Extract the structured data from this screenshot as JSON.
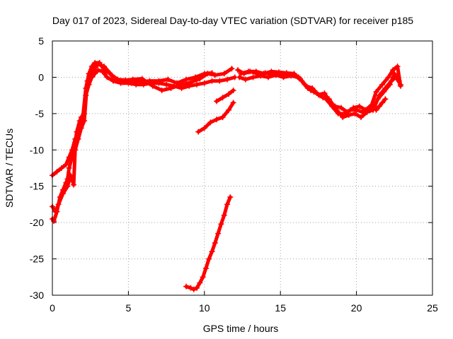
{
  "chart_data": {
    "type": "scatter",
    "title": "Day 017 of 2023, Sidereal Day-to-day VTEC variation (SDTVAR) for receiver p185",
    "xlabel": "GPS time / hours",
    "ylabel": "SDTVAR / TECUs",
    "xlim": [
      0,
      25
    ],
    "ylim": [
      -30,
      5
    ],
    "xticks": [
      0,
      5,
      10,
      15,
      20,
      25
    ],
    "yticks": [
      5,
      0,
      -5,
      -10,
      -15,
      -20,
      -25,
      -30
    ],
    "grid": true,
    "marker": "+",
    "series": [
      {
        "name": "p185",
        "color": "#ff0000",
        "tracks": [
          [
            [
              0.0,
              -19.5
            ],
            [
              0.1,
              -19.8
            ],
            [
              0.3,
              -18.5
            ],
            [
              0.5,
              -16.5
            ],
            [
              0.7,
              -15.5
            ],
            [
              0.9,
              -14.5
            ],
            [
              1.0,
              -14.0
            ],
            [
              1.1,
              -12.5
            ],
            [
              1.3,
              -11.0
            ],
            [
              1.5,
              -9.0
            ],
            [
              1.6,
              -7.5
            ],
            [
              1.8,
              -6.0
            ],
            [
              1.9,
              -5.5
            ],
            [
              2.1,
              -5.0
            ],
            [
              2.2,
              -2.5
            ],
            [
              2.4,
              -1.0
            ],
            [
              2.6,
              0.0
            ],
            [
              2.8,
              0.5
            ],
            [
              3.0,
              1.0
            ],
            [
              3.3,
              0.8
            ],
            [
              3.6,
              0.0
            ],
            [
              4.0,
              -0.5
            ],
            [
              4.5,
              -0.8
            ],
            [
              5.0,
              -0.8
            ],
            [
              5.5,
              -1.0
            ],
            [
              6.0,
              -1.0
            ],
            [
              6.5,
              -0.8
            ],
            [
              7.0,
              -0.8
            ],
            [
              7.5,
              -1.0
            ],
            [
              8.0,
              -1.2
            ],
            [
              8.5,
              -1.5
            ],
            [
              9.0,
              -1.2
            ],
            [
              9.5,
              -1.0
            ],
            [
              10.0,
              -0.8
            ],
            [
              10.5,
              -0.5
            ],
            [
              11.0,
              -0.5
            ],
            [
              11.5,
              -0.3
            ],
            [
              12.0,
              0.0
            ]
          ],
          [
            [
              0.0,
              -13.5
            ],
            [
              0.3,
              -13.0
            ],
            [
              0.6,
              -12.5
            ],
            [
              0.9,
              -12.0
            ],
            [
              1.1,
              -11.0
            ],
            [
              1.3,
              -10.0
            ],
            [
              1.5,
              -8.5
            ],
            [
              1.7,
              -7.5
            ],
            [
              1.8,
              -6.5
            ],
            [
              2.0,
              -5.5
            ],
            [
              2.2,
              -1.5
            ],
            [
              2.4,
              0.5
            ],
            [
              2.6,
              1.5
            ],
            [
              2.8,
              2.0
            ],
            [
              3.1,
              2.0
            ],
            [
              3.4,
              1.0
            ],
            [
              3.8,
              0.5
            ],
            [
              4.2,
              -0.5
            ],
            [
              4.7,
              -0.6
            ],
            [
              5.2,
              -0.8
            ],
            [
              5.8,
              -0.6
            ],
            [
              6.4,
              -0.5
            ],
            [
              7.0,
              -0.5
            ],
            [
              7.6,
              -0.3
            ],
            [
              8.2,
              -0.8
            ],
            [
              8.8,
              -0.3
            ],
            [
              9.4,
              0.0
            ],
            [
              10.0,
              0.5
            ],
            [
              10.5,
              0.6
            ]
          ],
          [
            [
              0.0,
              -17.8
            ],
            [
              0.2,
              -18.5
            ],
            [
              0.4,
              -17.5
            ],
            [
              0.7,
              -16.0
            ],
            [
              1.0,
              -15.0
            ],
            [
              1.2,
              -13.5
            ],
            [
              1.4,
              -14.8
            ],
            [
              1.5,
              -10.0
            ],
            [
              1.7,
              -8.5
            ],
            [
              1.9,
              -7.0
            ],
            [
              2.1,
              -6.0
            ],
            [
              2.3,
              -0.5
            ],
            [
              2.5,
              0.0
            ],
            [
              2.7,
              1.0
            ],
            [
              3.0,
              1.8
            ],
            [
              3.4,
              1.5
            ],
            [
              3.9,
              0.3
            ],
            [
              4.3,
              -0.3
            ],
            [
              4.8,
              -0.4
            ],
            [
              5.3,
              -0.3
            ],
            [
              5.9,
              -0.2
            ],
            [
              6.6,
              -1.2
            ],
            [
              7.2,
              -1.8
            ],
            [
              7.8,
              -1.5
            ],
            [
              8.5,
              -1.0
            ],
            [
              9.1,
              -0.7
            ],
            [
              9.7,
              -0.2
            ],
            [
              10.2,
              0.5
            ],
            [
              10.7,
              0.3
            ],
            [
              11.3,
              0.5
            ],
            [
              11.8,
              1.2
            ]
          ],
          [
            [
              9.6,
              -7.5
            ],
            [
              10.0,
              -7.0
            ],
            [
              10.4,
              -6.2
            ],
            [
              10.8,
              -5.8
            ],
            [
              11.2,
              -5.5
            ],
            [
              11.6,
              -4.5
            ],
            [
              11.9,
              -3.5
            ]
          ],
          [
            [
              10.8,
              -3.3
            ],
            [
              11.2,
              -2.8
            ],
            [
              11.6,
              -2.3
            ],
            [
              11.9,
              -1.8
            ]
          ],
          [
            [
              8.8,
              -28.8
            ],
            [
              9.1,
              -29.0
            ],
            [
              9.3,
              -29.2
            ],
            [
              9.5,
              -29.0
            ],
            [
              9.7,
              -28.3
            ],
            [
              9.9,
              -27.5
            ],
            [
              10.1,
              -26.3
            ],
            [
              10.3,
              -25.0
            ],
            [
              10.5,
              -24.0
            ],
            [
              10.7,
              -22.8
            ],
            [
              10.9,
              -21.5
            ],
            [
              11.1,
              -20.2
            ],
            [
              11.3,
              -19.0
            ],
            [
              11.5,
              -17.5
            ],
            [
              11.7,
              -16.5
            ]
          ],
          [
            [
              12.2,
              1.0
            ],
            [
              12.6,
              0.5
            ],
            [
              13.0,
              0.8
            ],
            [
              13.5,
              0.5
            ],
            [
              14.0,
              0.6
            ],
            [
              14.5,
              0.4
            ],
            [
              15.0,
              0.5
            ],
            [
              15.5,
              0.3
            ],
            [
              16.0,
              0.2
            ],
            [
              16.4,
              -0.5
            ],
            [
              16.8,
              -1.5
            ],
            [
              17.2,
              -2.0
            ],
            [
              17.6,
              -2.5
            ],
            [
              18.0,
              -3.0
            ],
            [
              18.4,
              -4.0
            ],
            [
              18.8,
              -5.0
            ],
            [
              19.2,
              -5.0
            ],
            [
              19.6,
              -4.5
            ],
            [
              20.0,
              -4.5
            ],
            [
              20.4,
              -4.8
            ],
            [
              20.8,
              -4.3
            ],
            [
              21.2,
              -4.0
            ],
            [
              21.5,
              -2.5
            ],
            [
              21.9,
              -1.5
            ],
            [
              22.3,
              -0.5
            ],
            [
              22.6,
              0.0
            ],
            [
              22.9,
              -1.0
            ]
          ],
          [
            [
              12.3,
              0.0
            ],
            [
              12.7,
              -0.3
            ],
            [
              13.2,
              0.0
            ],
            [
              13.7,
              0.2
            ],
            [
              14.2,
              0.0
            ],
            [
              14.7,
              0.3
            ],
            [
              15.2,
              0.0
            ],
            [
              15.7,
              0.2
            ],
            [
              16.2,
              0.0
            ],
            [
              16.6,
              -1.0
            ],
            [
              17.0,
              -1.8
            ],
            [
              17.4,
              -2.2
            ],
            [
              17.8,
              -2.8
            ],
            [
              18.2,
              -3.0
            ],
            [
              18.7,
              -4.5
            ],
            [
              19.1,
              -5.5
            ],
            [
              19.5,
              -5.2
            ],
            [
              19.9,
              -5.0
            ],
            [
              20.3,
              -5.5
            ],
            [
              20.7,
              -4.8
            ],
            [
              21.1,
              -4.5
            ],
            [
              21.4,
              -3.0
            ],
            [
              21.8,
              -2.0
            ],
            [
              22.2,
              -1.0
            ],
            [
              22.5,
              0.5
            ],
            [
              22.8,
              -0.5
            ]
          ],
          [
            [
              12.4,
              0.5
            ],
            [
              12.9,
              0.8
            ],
            [
              13.4,
              0.8
            ],
            [
              13.9,
              0.5
            ],
            [
              14.4,
              0.8
            ],
            [
              14.9,
              0.7
            ],
            [
              15.4,
              0.6
            ],
            [
              15.9,
              0.5
            ],
            [
              16.3,
              -0.2
            ],
            [
              16.7,
              -1.2
            ],
            [
              17.1,
              -1.5
            ],
            [
              17.5,
              -2.4
            ],
            [
              17.9,
              -2.2
            ],
            [
              18.3,
              -3.5
            ],
            [
              18.6,
              -4.0
            ],
            [
              19.0,
              -4.2
            ],
            [
              19.4,
              -4.8
            ],
            [
              19.8,
              -4.2
            ],
            [
              20.2,
              -4.0
            ],
            [
              20.6,
              -4.5
            ],
            [
              21.0,
              -3.8
            ],
            [
              21.3,
              -2.0
            ],
            [
              21.7,
              -1.0
            ],
            [
              22.1,
              0.0
            ],
            [
              22.4,
              1.0
            ],
            [
              22.7,
              1.5
            ],
            [
              22.9,
              -1.2
            ]
          ],
          [
            [
              21.3,
              -4.5
            ],
            [
              21.5,
              -4.0
            ],
            [
              21.7,
              -3.5
            ],
            [
              21.9,
              -3.0
            ]
          ]
        ]
      }
    ]
  }
}
